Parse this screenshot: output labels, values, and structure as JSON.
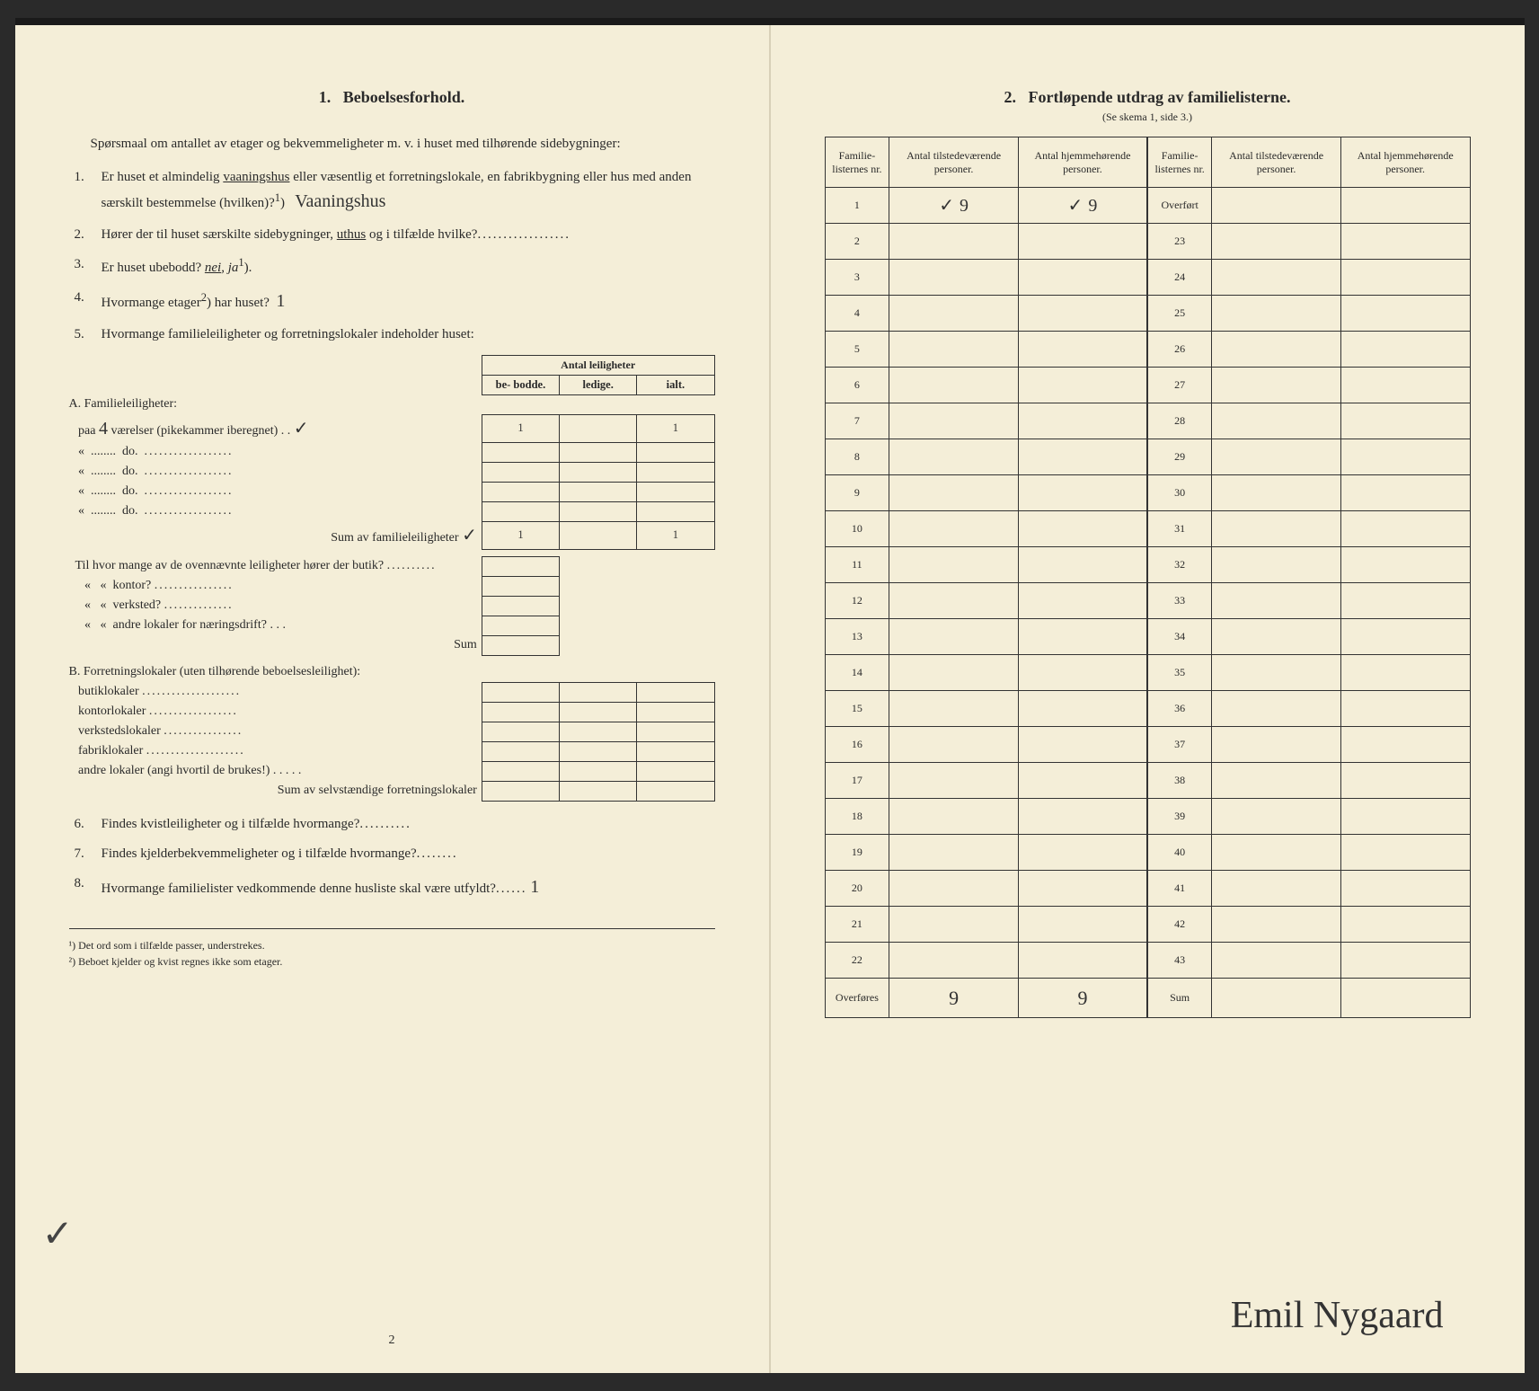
{
  "left": {
    "section_no": "1.",
    "section_title": "Beboelsesforhold.",
    "intro": "Spørsmaal om antallet av etager og bekvemmeligheter m. v. i huset med tilhørende sidebygninger:",
    "q1_num": "1.",
    "q1_text_a": "Er huset et almindelig ",
    "q1_vaaningshus": "vaaningshus",
    "q1_text_b": " eller væsentlig et forretnings­lokale, en fabrikbygning eller hus med anden særskilt bestem­melse (hvilken)?",
    "q1_sup": "1",
    "q1_answer": "Vaaningshus",
    "q2_num": "2.",
    "q2_text": "Hører der til huset særskilte sidebygninger, ",
    "q2_uthus": "uthus",
    "q2_text_b": " og i tilfælde hvilke?",
    "q3_num": "3.",
    "q3_text": "Er huset ubebodd? ",
    "q3_nei": "nei",
    "q3_ja": "ja",
    "q3_sup": "1",
    "q4_num": "4.",
    "q4_text": "Hvormange etager",
    "q4_sup": "2",
    "q4_text_b": ") har huset?",
    "q4_answer": "1",
    "q5_num": "5.",
    "q5_text": "Hvormange familieleiligheter og forretningslokaler indeholder huset:",
    "table_hdr": "Antal leiligheter",
    "col_bebodde": "be-\nbodde.",
    "col_ledige": "ledige.",
    "col_ialt": "ialt.",
    "A_label": "A. Familieleiligheter:",
    "A_row1_a": "paa ",
    "A_row1_rooms": "4",
    "A_row1_b": " værelser (pikekammer iberegnet) . .",
    "A_row1_check": "✓",
    "A_row1_v1": "1",
    "A_row1_v3": "1",
    "A_do": "do.",
    "A_laquo": "«",
    "A_sum": "Sum av familieleiligheter",
    "A_sum_check": "✓",
    "A_sum_v1": "1",
    "A_sum_v3": "1",
    "oven_text": "Til hvor mange av de ovennævnte leiligheter hører der butik?",
    "oven_kontor": "kontor?",
    "oven_verksted": "verksted?",
    "oven_andre": "andre lokaler for næringsdrift?",
    "oven_sum": "Sum",
    "B_label": "B. Forretningslokaler (uten tilhørende be­boelsesleilighet):",
    "B_butik": "butiklokaler",
    "B_kontor": "kontorlokaler",
    "B_verk": "verkstedslokaler",
    "B_fabrik": "fabriklokaler",
    "B_andre": "andre lokaler (angi hvortil de brukes!)",
    "B_sum": "Sum av selvstændige forretningslokaler",
    "q6_num": "6.",
    "q6_text": "Findes kvistleiligheter og i tilfælde hvormange?",
    "q7_num": "7.",
    "q7_text": "Findes kjelderbekvemmeligheter og i tilfælde hvormange?",
    "q8_num": "8.",
    "q8_text": "Hvormange familielister vedkommende denne husliste skal være utfyldt?",
    "q8_answer": "1",
    "fn1": "¹) Det ord som i tilfælde passer, understrekes.",
    "fn2": "²) Beboet kjelder og kvist regnes ikke som etager.",
    "pagenum": "2",
    "stray": "✓"
  },
  "right": {
    "section_no": "2.",
    "section_title": "Fortløpende utdrag av familielisterne.",
    "sub": "(Se skema 1, side 3.)",
    "h_nr": "Familie-\nlisternes\nnr.",
    "h_tilstede": "Antal\ntilstedeværende\npersoner.",
    "h_hjem": "Antal\nhjemmehørende\npersoner.",
    "left_rows": [
      "1",
      "2",
      "3",
      "4",
      "5",
      "6",
      "7",
      "8",
      "9",
      "10",
      "11",
      "12",
      "13",
      "14",
      "15",
      "16",
      "17",
      "18",
      "19",
      "20",
      "21",
      "22"
    ],
    "right_first": "Overført",
    "right_rows": [
      "23",
      "24",
      "25",
      "26",
      "27",
      "28",
      "29",
      "30",
      "31",
      "32",
      "33",
      "34",
      "35",
      "36",
      "37",
      "38",
      "39",
      "40",
      "41",
      "42",
      "43"
    ],
    "row1_check_a": "✓",
    "row1_val_a": "9",
    "row1_check_b": "✓",
    "row1_val_b": "9",
    "overfores": "Overføres",
    "sum_label": "Sum",
    "tot_a": "9",
    "tot_b": "9",
    "signature": "Emil Nygaard"
  }
}
